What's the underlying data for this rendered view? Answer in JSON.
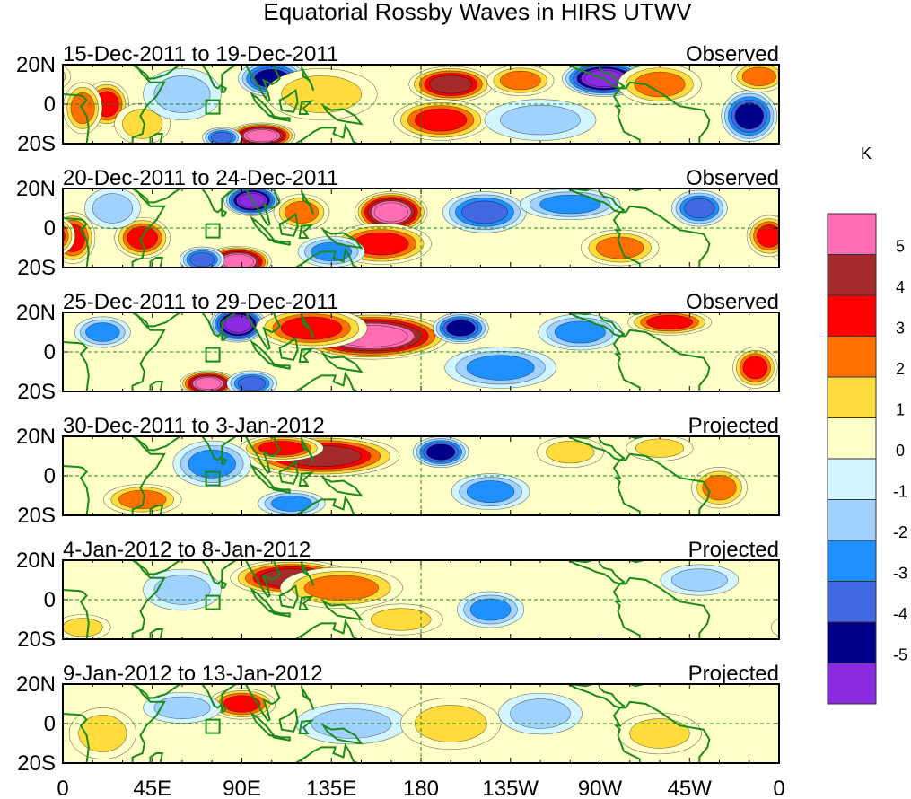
{
  "chart_data": {
    "type": "heatmap",
    "title": "Equatorial Rossby Waves in HIRS UTWV",
    "units": "K",
    "x_ticks": [
      "0",
      "45E",
      "90E",
      "135E",
      "180",
      "135W",
      "90W",
      "45W",
      "0"
    ],
    "y_ticks": [
      "20N",
      "0",
      "20S"
    ],
    "x_range_deg_east": [
      0,
      360
    ],
    "y_range_deg": [
      -20,
      20
    ],
    "colorbar": {
      "labels": [
        "5",
        "4",
        "3",
        "2",
        "1",
        "0",
        "-1",
        "-2",
        "-3",
        "-4",
        "-5"
      ],
      "levels_top_to_bottom": [
        {
          "range": "> 5",
          "color": "#ff6eb4"
        },
        {
          "range": "4 to 5",
          "color": "#a52a2a"
        },
        {
          "range": "3 to 4",
          "color": "#ff0000"
        },
        {
          "range": "2 to 3",
          "color": "#ff7000"
        },
        {
          "range": "1 to 2",
          "color": "#ffdc3c"
        },
        {
          "range": "0 to 1",
          "color": "#ffffc8"
        },
        {
          "range": "-1 to 0",
          "color": "#d2f5ff"
        },
        {
          "range": "-2 to -1",
          "color": "#a0d2ff"
        },
        {
          "range": "-3 to -2",
          "color": "#1e90ff"
        },
        {
          "range": "-4 to -3",
          "color": "#4169e1"
        },
        {
          "range": "-5 to -4",
          "color": "#00008b"
        },
        {
          "range": "< -5",
          "color": "#8a2be2"
        }
      ]
    },
    "panels": [
      {
        "label": "15-Dec-2011 to 19-Dec-2011",
        "status": "Observed",
        "blobs": [
          {
            "lon": 22,
            "lat": 0,
            "value": 3.5,
            "rx": 8,
            "ry": 9
          },
          {
            "lon": 10,
            "lat": -2,
            "value": 2.5,
            "rx": 7,
            "ry": 10
          },
          {
            "lon": 40,
            "lat": -10,
            "value": 1.5,
            "rx": 10,
            "ry": 8
          },
          {
            "lon": 60,
            "lat": 5,
            "value": -1.5,
            "rx": 14,
            "ry": 10
          },
          {
            "lon": 105,
            "lat": 13,
            "value": -4.2,
            "rx": 12,
            "ry": 7
          },
          {
            "lon": 100,
            "lat": -16,
            "value": 5.5,
            "rx": 12,
            "ry": 5
          },
          {
            "lon": 80,
            "lat": -17,
            "value": -3.0,
            "rx": 7,
            "ry": 4
          },
          {
            "lon": 130,
            "lat": 5,
            "value": 1.2,
            "rx": 20,
            "ry": 10
          },
          {
            "lon": 195,
            "lat": 10,
            "value": 4.2,
            "rx": 15,
            "ry": 7
          },
          {
            "lon": 190,
            "lat": -8,
            "value": 3.0,
            "rx": 17,
            "ry": 8
          },
          {
            "lon": 230,
            "lat": 12,
            "value": 2.5,
            "rx": 12,
            "ry": 6
          },
          {
            "lon": 272,
            "lat": 13,
            "value": -5.5,
            "rx": 15,
            "ry": 7
          },
          {
            "lon": 300,
            "lat": 10,
            "value": 2.2,
            "rx": 15,
            "ry": 8
          },
          {
            "lon": 345,
            "lat": -6,
            "value": -4.5,
            "rx": 10,
            "ry": 10
          },
          {
            "lon": 350,
            "lat": 14,
            "value": 2.0,
            "rx": 10,
            "ry": 6
          },
          {
            "lon": 240,
            "lat": -8,
            "value": -1.5,
            "rx": 20,
            "ry": 8
          }
        ]
      },
      {
        "label": "20-Dec-2011 to 24-Dec-2011",
        "status": "Observed",
        "blobs": [
          {
            "lon": 5,
            "lat": -5,
            "value": 3.0,
            "rx": 8,
            "ry": 10
          },
          {
            "lon": 40,
            "lat": -5,
            "value": 3.2,
            "rx": 10,
            "ry": 8
          },
          {
            "lon": 25,
            "lat": 10,
            "value": -1.5,
            "rx": 10,
            "ry": 8
          },
          {
            "lon": 95,
            "lat": 14,
            "value": -5.5,
            "rx": 10,
            "ry": 6
          },
          {
            "lon": 88,
            "lat": -17,
            "value": 5.5,
            "rx": 12,
            "ry": 6
          },
          {
            "lon": 70,
            "lat": -16,
            "value": -3.0,
            "rx": 8,
            "ry": 5
          },
          {
            "lon": 120,
            "lat": 8,
            "value": 2.5,
            "rx": 10,
            "ry": 7
          },
          {
            "lon": 165,
            "lat": 8,
            "value": 5.5,
            "rx": 13,
            "ry": 8
          },
          {
            "lon": 160,
            "lat": -8,
            "value": 3.5,
            "rx": 18,
            "ry": 8
          },
          {
            "lon": 212,
            "lat": 8,
            "value": -3.0,
            "rx": 15,
            "ry": 8
          },
          {
            "lon": 255,
            "lat": 12,
            "value": -2.5,
            "rx": 18,
            "ry": 6
          },
          {
            "lon": 280,
            "lat": -10,
            "value": 2.2,
            "rx": 14,
            "ry": 7
          },
          {
            "lon": 320,
            "lat": 10,
            "value": -3.5,
            "rx": 10,
            "ry": 7
          },
          {
            "lon": 355,
            "lat": -4,
            "value": 3.2,
            "rx": 8,
            "ry": 8
          },
          {
            "lon": 135,
            "lat": -12,
            "value": -2.0,
            "rx": 12,
            "ry": 6
          }
        ]
      },
      {
        "label": "25-Dec-2011 to 29-Dec-2011",
        "status": "Observed",
        "blobs": [
          {
            "lon": 88,
            "lat": 14,
            "value": -5.5,
            "rx": 10,
            "ry": 7
          },
          {
            "lon": 73,
            "lat": -16,
            "value": 5.5,
            "rx": 10,
            "ry": 5
          },
          {
            "lon": 95,
            "lat": -16,
            "value": -3.8,
            "rx": 9,
            "ry": 5
          },
          {
            "lon": 155,
            "lat": 8,
            "value": 5.5,
            "rx": 28,
            "ry": 9
          },
          {
            "lon": 125,
            "lat": 12,
            "value": 3.0,
            "rx": 20,
            "ry": 8
          },
          {
            "lon": 200,
            "lat": 12,
            "value": -4.5,
            "rx": 10,
            "ry": 6
          },
          {
            "lon": 220,
            "lat": -8,
            "value": -2.5,
            "rx": 20,
            "ry": 8
          },
          {
            "lon": 305,
            "lat": 15,
            "value": 3.0,
            "rx": 15,
            "ry": 5
          },
          {
            "lon": 348,
            "lat": -8,
            "value": 3.2,
            "rx": 8,
            "ry": 8
          },
          {
            "lon": 20,
            "lat": 10,
            "value": -2.0,
            "rx": 10,
            "ry": 6
          },
          {
            "lon": 260,
            "lat": 10,
            "value": -2.0,
            "rx": 15,
            "ry": 7
          }
        ]
      },
      {
        "label": "30-Dec-2011 to 3-Jan-2012",
        "status": "Projected",
        "blobs": [
          {
            "lon": 130,
            "lat": 10,
            "value": 4.8,
            "rx": 28,
            "ry": 8
          },
          {
            "lon": 110,
            "lat": 14,
            "value": 3.5,
            "rx": 15,
            "ry": 5
          },
          {
            "lon": 190,
            "lat": 12,
            "value": -4.8,
            "rx": 10,
            "ry": 6
          },
          {
            "lon": 75,
            "lat": 6,
            "value": -2.5,
            "rx": 14,
            "ry": 9
          },
          {
            "lon": 40,
            "lat": -12,
            "value": 2.5,
            "rx": 14,
            "ry": 6
          },
          {
            "lon": 115,
            "lat": -14,
            "value": -2.2,
            "rx": 12,
            "ry": 5
          },
          {
            "lon": 215,
            "lat": -8,
            "value": -2.5,
            "rx": 14,
            "ry": 7
          },
          {
            "lon": 330,
            "lat": -6,
            "value": 2.8,
            "rx": 10,
            "ry": 8
          },
          {
            "lon": 255,
            "lat": 12,
            "value": 1.5,
            "rx": 12,
            "ry": 6
          },
          {
            "lon": 300,
            "lat": 14,
            "value": 1.8,
            "rx": 12,
            "ry": 5
          }
        ]
      },
      {
        "label": "4-Jan-2012 to 8-Jan-2012",
        "status": "Projected",
        "blobs": [
          {
            "lon": 115,
            "lat": 11,
            "value": 4.2,
            "rx": 22,
            "ry": 7
          },
          {
            "lon": 140,
            "lat": 6,
            "value": 2.8,
            "rx": 22,
            "ry": 8
          },
          {
            "lon": 60,
            "lat": 5,
            "value": -1.5,
            "rx": 14,
            "ry": 8
          },
          {
            "lon": 170,
            "lat": -10,
            "value": 1.5,
            "rx": 15,
            "ry": 6
          },
          {
            "lon": 215,
            "lat": -5,
            "value": -2.0,
            "rx": 12,
            "ry": 7
          },
          {
            "lon": 10,
            "lat": -14,
            "value": 1.5,
            "rx": 10,
            "ry": 5
          },
          {
            "lon": 320,
            "lat": 10,
            "value": -1.5,
            "rx": 14,
            "ry": 6
          }
        ]
      },
      {
        "label": "9-Jan-2012 to 13-Jan-2012",
        "status": "Projected",
        "blobs": [
          {
            "lon": 90,
            "lat": 10,
            "value": 3.0,
            "rx": 12,
            "ry": 6
          },
          {
            "lon": 60,
            "lat": 8,
            "value": -1.5,
            "rx": 14,
            "ry": 6
          },
          {
            "lon": 145,
            "lat": 0,
            "value": -1.2,
            "rx": 20,
            "ry": 8
          },
          {
            "lon": 195,
            "lat": 0,
            "value": 1.2,
            "rx": 18,
            "ry": 10
          },
          {
            "lon": 240,
            "lat": 5,
            "value": -1.3,
            "rx": 15,
            "ry": 8
          },
          {
            "lon": 300,
            "lat": -5,
            "value": 1.3,
            "rx": 15,
            "ry": 8
          },
          {
            "lon": 20,
            "lat": -5,
            "value": 1.2,
            "rx": 12,
            "ry": 10
          }
        ]
      }
    ]
  }
}
